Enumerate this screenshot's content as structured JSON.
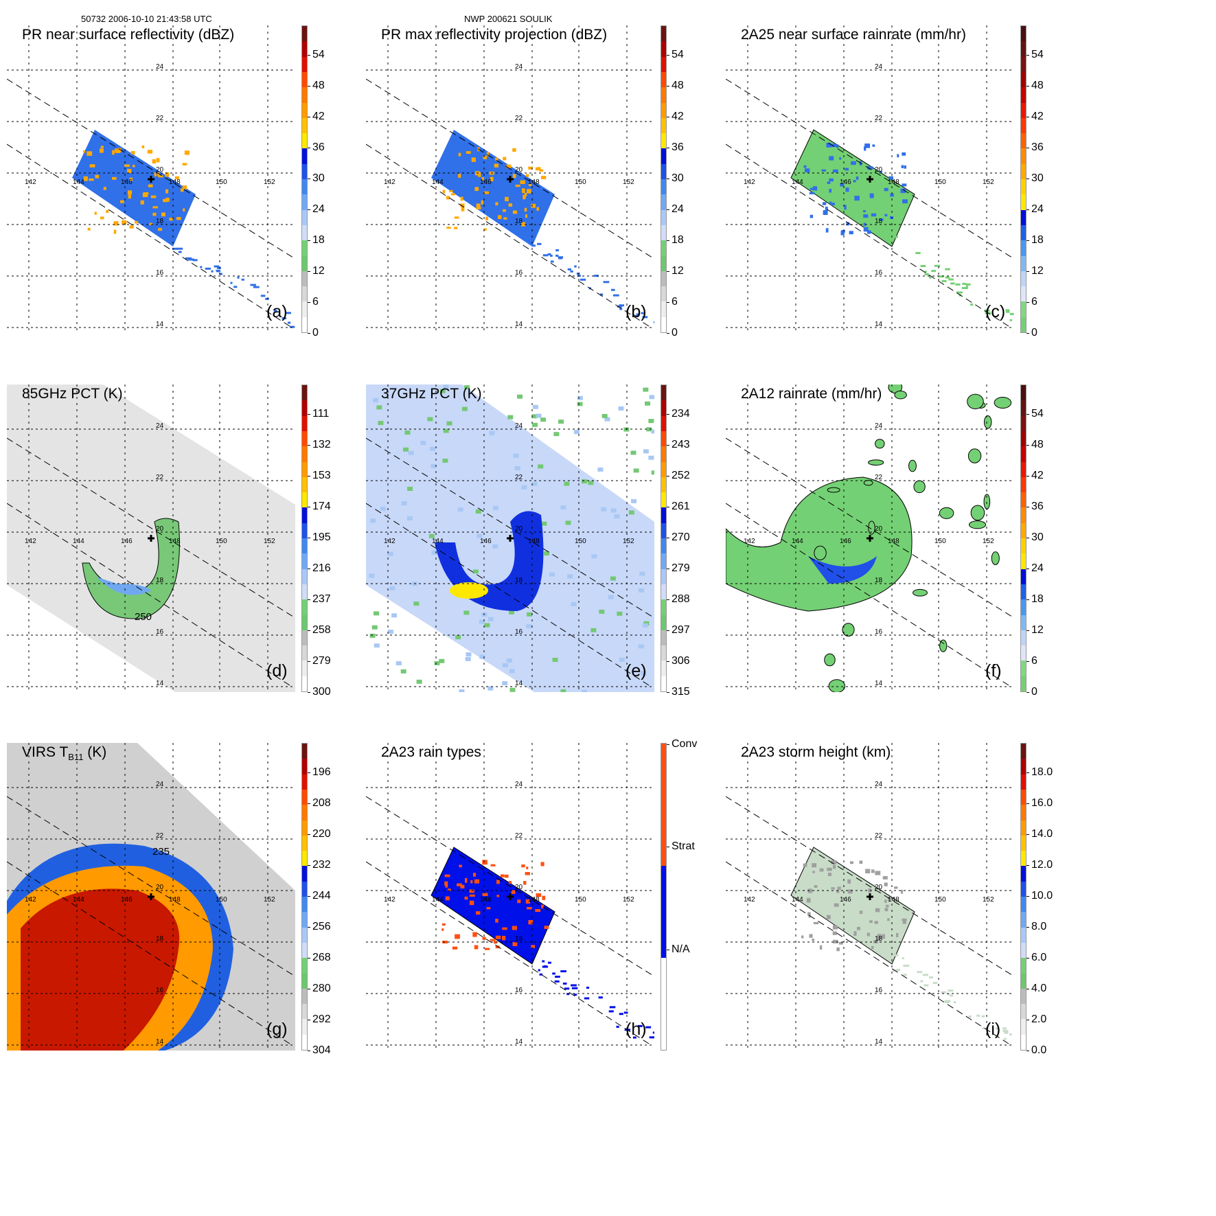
{
  "header": {
    "left": "50732 2006-10-10 21:43:58 UTC",
    "center": "NWP 200621 SOULIK"
  },
  "grid": {
    "lon_labels": [
      "142",
      "144",
      "146",
      "148",
      "150",
      "152"
    ],
    "lat_labels": [
      "24",
      "22",
      "20",
      "18",
      "16",
      "14"
    ]
  },
  "palettes": {
    "dbz": [
      "#ffffff",
      "#eeeeee",
      "#d8d8d8",
      "#bcbcbc",
      "#6cc86c",
      "#74d074",
      "#d0dcf8",
      "#a8c8f8",
      "#70a8f4",
      "#4088f0",
      "#2050e8",
      "#0010d8",
      "#ffe800",
      "#ffc000",
      "#ff9a00",
      "#ff7800",
      "#ff4a00",
      "#e01000",
      "#b00000",
      "#6a1410"
    ],
    "rain": [
      "#74d074",
      "#80d880",
      "#e0e4f8",
      "#c0d4f8",
      "#80b8f4",
      "#4898f0",
      "#2060e8",
      "#0010d8",
      "#ffe800",
      "#ffd000",
      "#ffa800",
      "#ff8c00",
      "#ff6000",
      "#ff3800",
      "#e81800",
      "#c80000",
      "#a00000",
      "#801010",
      "#641410",
      "#4a1010"
    ],
    "types": [
      "#ffffff",
      "#ffffff",
      "#ffffff",
      "#ffffff",
      "#ffffff",
      "#ffffff",
      "#0010e8",
      "#0010e8",
      "#0010e8",
      "#0010e8",
      "#0010e8",
      "#0010e8",
      "#ff5010",
      "#ff5010",
      "#ff5010",
      "#ff5010",
      "#ff5010",
      "#ff5010",
      "#ff5010",
      "#ff5010"
    ]
  },
  "panels": [
    {
      "id": "a",
      "title": "PR near surface reflectivity (dBZ)",
      "label": "(a)",
      "palette": "dbz",
      "ticks": [
        "0",
        "6",
        "12",
        "18",
        "24",
        "30",
        "36",
        "42",
        "48",
        "54"
      ],
      "kind": "pr"
    },
    {
      "id": "b",
      "title": "PR max reflectivity projection (dBZ)",
      "label": "(b)",
      "palette": "dbz",
      "ticks": [
        "0",
        "6",
        "12",
        "18",
        "24",
        "30",
        "36",
        "42",
        "48",
        "54"
      ],
      "kind": "pr"
    },
    {
      "id": "c",
      "title": "2A25 near surface rainrate (mm/hr)",
      "label": "(c)",
      "palette": "rain",
      "ticks": [
        "0",
        "6",
        "12",
        "18",
        "24",
        "30",
        "36",
        "42",
        "48",
        "54"
      ],
      "kind": "prrain"
    },
    {
      "id": "d",
      "title": "85GHz PCT (K)",
      "label": "(d)",
      "palette": "dbz",
      "ticks": [
        "300",
        "279",
        "258",
        "237",
        "216",
        "195",
        "174",
        "153",
        "132",
        "111"
      ],
      "kind": "pct85",
      "annotation": "250"
    },
    {
      "id": "e",
      "title": "37GHz PCT (K)",
      "label": "(e)",
      "palette": "dbz",
      "ticks": [
        "315",
        "306",
        "297",
        "288",
        "279",
        "270",
        "261",
        "252",
        "243",
        "234"
      ],
      "kind": "pct37"
    },
    {
      "id": "f",
      "title": "2A12 rainrate (mm/hr)",
      "label": "(f)",
      "palette": "rain",
      "ticks": [
        "0",
        "6",
        "12",
        "18",
        "24",
        "30",
        "36",
        "42",
        "48",
        "54"
      ],
      "kind": "tmi"
    },
    {
      "id": "g",
      "title": "VIRS T",
      "title_sub": "B11",
      "title_tail": " (K)",
      "label": "(g)",
      "palette": "dbz",
      "ticks": [
        "304",
        "292",
        "280",
        "268",
        "256",
        "244",
        "232",
        "220",
        "208",
        "196"
      ],
      "kind": "virs",
      "annotation": "235"
    },
    {
      "id": "h",
      "title": "2A23 rain types",
      "label": "(h)",
      "palette": "types",
      "ticks_named": [
        {
          "t": "N/A",
          "f": 0.333
        },
        {
          "t": "Strat",
          "f": 0.667
        },
        {
          "t": "Conv",
          "f": 1.0
        }
      ],
      "kind": "types"
    },
    {
      "id": "i",
      "title": "2A23 storm height (km)",
      "label": "(i)",
      "palette": "dbz",
      "ticks": [
        "0.0",
        "2.0",
        "4.0",
        "6.0",
        "8.0",
        "10.0",
        "12.0",
        "14.0",
        "16.0",
        "18.0"
      ],
      "kind": "height"
    }
  ]
}
